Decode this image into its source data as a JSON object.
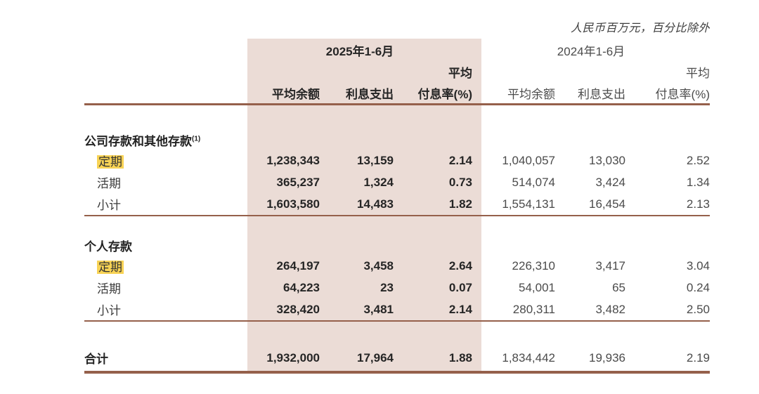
{
  "note": "人民币百万元，百分比除外",
  "table": {
    "header": {
      "period_2025": "2025年1-6月",
      "period_2024": "2024年1-6月",
      "avg": "平均",
      "cols": [
        "平均余额",
        "利息支出",
        "付息率(%)"
      ]
    },
    "sections": [
      {
        "title": "公司存款和其他存款",
        "footnote": "(1)",
        "rows": [
          {
            "label": "定期",
            "highlighted": true,
            "v2025": [
              "1,238,343",
              "13,159",
              "2.14"
            ],
            "v2024": [
              "1,040,057",
              "13,030",
              "2.52"
            ]
          },
          {
            "label": "活期",
            "highlighted": false,
            "v2025": [
              "365,237",
              "1,324",
              "0.73"
            ],
            "v2024": [
              "514,074",
              "3,424",
              "1.34"
            ]
          },
          {
            "label": "小计",
            "highlighted": false,
            "v2025": [
              "1,603,580",
              "14,483",
              "1.82"
            ],
            "v2024": [
              "1,554,131",
              "16,454",
              "2.13"
            ]
          }
        ]
      },
      {
        "title": "个人存款",
        "footnote": "",
        "rows": [
          {
            "label": "定期",
            "highlighted": true,
            "v2025": [
              "264,197",
              "3,458",
              "2.64"
            ],
            "v2024": [
              "226,310",
              "3,417",
              "3.04"
            ]
          },
          {
            "label": "活期",
            "highlighted": false,
            "v2025": [
              "64,223",
              "23",
              "0.07"
            ],
            "v2024": [
              "54,001",
              "65",
              "0.24"
            ]
          },
          {
            "label": "小计",
            "highlighted": false,
            "v2025": [
              "328,420",
              "3,481",
              "2.14"
            ],
            "v2024": [
              "280,311",
              "3,482",
              "2.50"
            ]
          }
        ]
      }
    ],
    "total": {
      "label": "合计",
      "v2025": [
        "1,932,000",
        "17,964",
        "1.88"
      ],
      "v2024": [
        "1,834,442",
        "19,936",
        "2.19"
      ]
    }
  },
  "colors": {
    "highlight_column_bg": "#ebdcd6",
    "rule_line": "#95604b",
    "search_highlight": "#f8d355"
  }
}
